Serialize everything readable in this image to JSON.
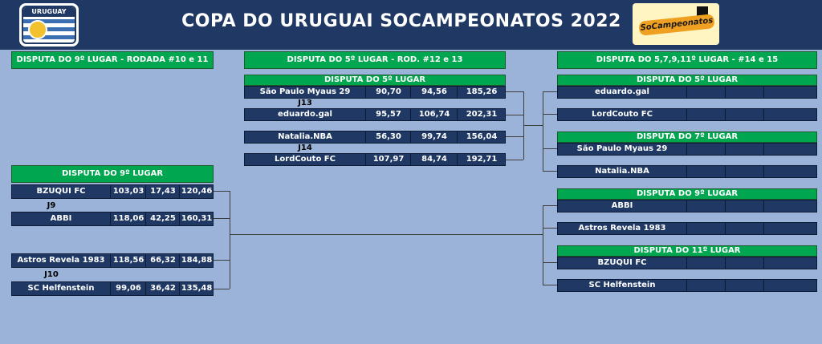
{
  "header": {
    "title": "COPA DO URUGUAI SOCAMPEONATOS 2022",
    "left_logo": {
      "name": "uruguay-badge",
      "text": "URUGUAY"
    },
    "right_logo": {
      "name": "socampeonatos-logo",
      "text": "SoCampeonatos"
    }
  },
  "colors": {
    "header_bg": "#1f3864",
    "section_green": "#00a650",
    "row_navy": "#1f3864",
    "page_bg": "#9bb3d8"
  },
  "left_section": {
    "title": "DISPUTA DO 9º LUGAR - RODADA #10 e 11",
    "group_title": "DISPUTA DO 9º LUGAR",
    "j9": "J9",
    "j10": "J10",
    "matches": [
      {
        "team": "BZUQUI FC",
        "r1": "103,03",
        "r2": "17,43",
        "total": "120,46"
      },
      {
        "team": "ABBI",
        "r1": "118,06",
        "r2": "42,25",
        "total": "160,31"
      },
      {
        "team": "Astros Revela 1983",
        "r1": "118,56",
        "r2": "66,32",
        "total": "184,88"
      },
      {
        "team": "SC Helfenstein",
        "r1": "99,06",
        "r2": "36,42",
        "total": "135,48"
      }
    ]
  },
  "middle_section": {
    "title": "DISPUTA DO 5º LUGAR - ROD. #12 e 13",
    "group_title": "DISPUTA DO 5º LUGAR",
    "j13": "J13",
    "j14": "J14",
    "matches": [
      {
        "team": "São Paulo Myaus 29",
        "r1": "90,70",
        "r2": "94,56",
        "total": "185,26"
      },
      {
        "team": "eduardo.gal",
        "r1": "95,57",
        "r2": "106,74",
        "total": "202,31"
      },
      {
        "team": "Natalia.NBA",
        "r1": "56,30",
        "r2": "99,74",
        "total": "156,04"
      },
      {
        "team": "LordCouto FC",
        "r1": "107,97",
        "r2": "84,74",
        "total": "192,71"
      }
    ]
  },
  "right_section": {
    "title": "DISPUTA DO 5,7,9,11º LUGAR - #14 e 15",
    "groups": [
      {
        "title": "DISPUTA DO 5º LUGAR",
        "teams": [
          "eduardo.gal",
          "LordCouto FC"
        ]
      },
      {
        "title": "DISPUTA DO 7º LUGAR",
        "teams": [
          "São Paulo Myaus 29",
          "Natalia.NBA"
        ]
      },
      {
        "title": "DISPUTA DO 9º LUGAR",
        "teams": [
          "ABBI",
          "Astros Revela 1983"
        ]
      },
      {
        "title": "DISPUTA DO 11º LUGAR",
        "teams": [
          "BZUQUI FC",
          "SC Helfenstein"
        ]
      }
    ]
  }
}
